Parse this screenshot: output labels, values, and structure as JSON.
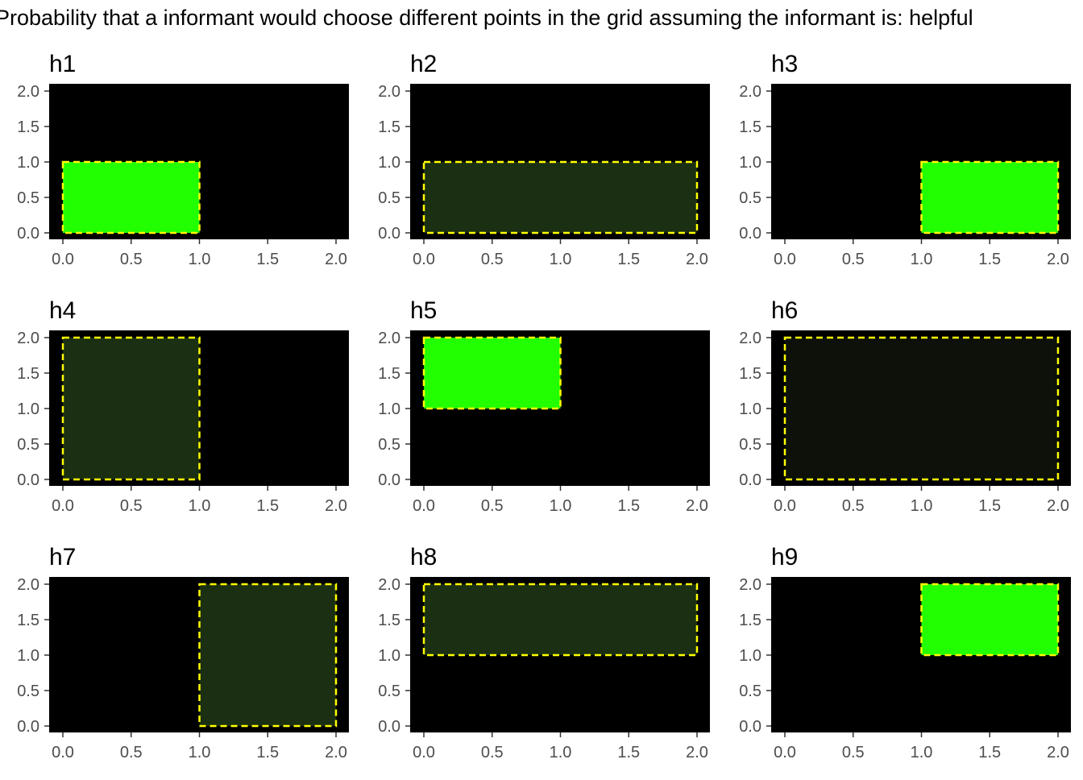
{
  "title": "Probability that a informant would choose different points in the grid assuming the informant is: helpful",
  "colors": {
    "panel_bg": "#000000",
    "rect_border": "#ffff00",
    "high_fill": "#22ff00",
    "mid_fill": "#1b2f12",
    "low_fill": "#0d110a",
    "tick_text": "#4d4d4d"
  },
  "chart_data": [
    {
      "type": "heatmap",
      "title": "h1",
      "xlim": [
        0,
        2
      ],
      "ylim": [
        0,
        2
      ],
      "xticks": [
        "0.0",
        "0.5",
        "1.0",
        "1.5",
        "2.0"
      ],
      "yticks": [
        "0.0",
        "0.5",
        "1.0",
        "1.5",
        "2.0"
      ],
      "rect": {
        "x": [
          0,
          1
        ],
        "y": [
          0,
          1
        ]
      },
      "level": "high"
    },
    {
      "type": "heatmap",
      "title": "h2",
      "xlim": [
        0,
        2
      ],
      "ylim": [
        0,
        2
      ],
      "xticks": [
        "0.0",
        "0.5",
        "1.0",
        "1.5",
        "2.0"
      ],
      "yticks": [
        "0.0",
        "0.5",
        "1.0",
        "1.5",
        "2.0"
      ],
      "rect": {
        "x": [
          0,
          2
        ],
        "y": [
          0,
          1
        ]
      },
      "level": "mid"
    },
    {
      "type": "heatmap",
      "title": "h3",
      "xlim": [
        0,
        2
      ],
      "ylim": [
        0,
        2
      ],
      "xticks": [
        "0.0",
        "0.5",
        "1.0",
        "1.5",
        "2.0"
      ],
      "yticks": [
        "0.0",
        "0.5",
        "1.0",
        "1.5",
        "2.0"
      ],
      "rect": {
        "x": [
          1,
          2
        ],
        "y": [
          0,
          1
        ]
      },
      "level": "high"
    },
    {
      "type": "heatmap",
      "title": "h4",
      "xlim": [
        0,
        2
      ],
      "ylim": [
        0,
        2
      ],
      "xticks": [
        "0.0",
        "0.5",
        "1.0",
        "1.5",
        "2.0"
      ],
      "yticks": [
        "0.0",
        "0.5",
        "1.0",
        "1.5",
        "2.0"
      ],
      "rect": {
        "x": [
          0,
          1
        ],
        "y": [
          0,
          2
        ]
      },
      "level": "mid"
    },
    {
      "type": "heatmap",
      "title": "h5",
      "xlim": [
        0,
        2
      ],
      "ylim": [
        0,
        2
      ],
      "xticks": [
        "0.0",
        "0.5",
        "1.0",
        "1.5",
        "2.0"
      ],
      "yticks": [
        "0.0",
        "0.5",
        "1.0",
        "1.5",
        "2.0"
      ],
      "rect": {
        "x": [
          0,
          1
        ],
        "y": [
          1,
          2
        ]
      },
      "level": "high"
    },
    {
      "type": "heatmap",
      "title": "h6",
      "xlim": [
        0,
        2
      ],
      "ylim": [
        0,
        2
      ],
      "xticks": [
        "0.0",
        "0.5",
        "1.0",
        "1.5",
        "2.0"
      ],
      "yticks": [
        "0.0",
        "0.5",
        "1.0",
        "1.5",
        "2.0"
      ],
      "rect": {
        "x": [
          0,
          2
        ],
        "y": [
          0,
          2
        ]
      },
      "level": "low"
    },
    {
      "type": "heatmap",
      "title": "h7",
      "xlim": [
        0,
        2
      ],
      "ylim": [
        0,
        2
      ],
      "xticks": [
        "0.0",
        "0.5",
        "1.0",
        "1.5",
        "2.0"
      ],
      "yticks": [
        "0.0",
        "0.5",
        "1.0",
        "1.5",
        "2.0"
      ],
      "rect": {
        "x": [
          1,
          2
        ],
        "y": [
          0,
          2
        ]
      },
      "level": "mid"
    },
    {
      "type": "heatmap",
      "title": "h8",
      "xlim": [
        0,
        2
      ],
      "ylim": [
        0,
        2
      ],
      "xticks": [
        "0.0",
        "0.5",
        "1.0",
        "1.5",
        "2.0"
      ],
      "yticks": [
        "0.0",
        "0.5",
        "1.0",
        "1.5",
        "2.0"
      ],
      "rect": {
        "x": [
          0,
          2
        ],
        "y": [
          1,
          2
        ]
      },
      "level": "mid"
    },
    {
      "type": "heatmap",
      "title": "h9",
      "xlim": [
        0,
        2
      ],
      "ylim": [
        0,
        2
      ],
      "xticks": [
        "0.0",
        "0.5",
        "1.0",
        "1.5",
        "2.0"
      ],
      "yticks": [
        "0.0",
        "0.5",
        "1.0",
        "1.5",
        "2.0"
      ],
      "rect": {
        "x": [
          1,
          2
        ],
        "y": [
          1,
          2
        ]
      },
      "level": "high"
    }
  ]
}
